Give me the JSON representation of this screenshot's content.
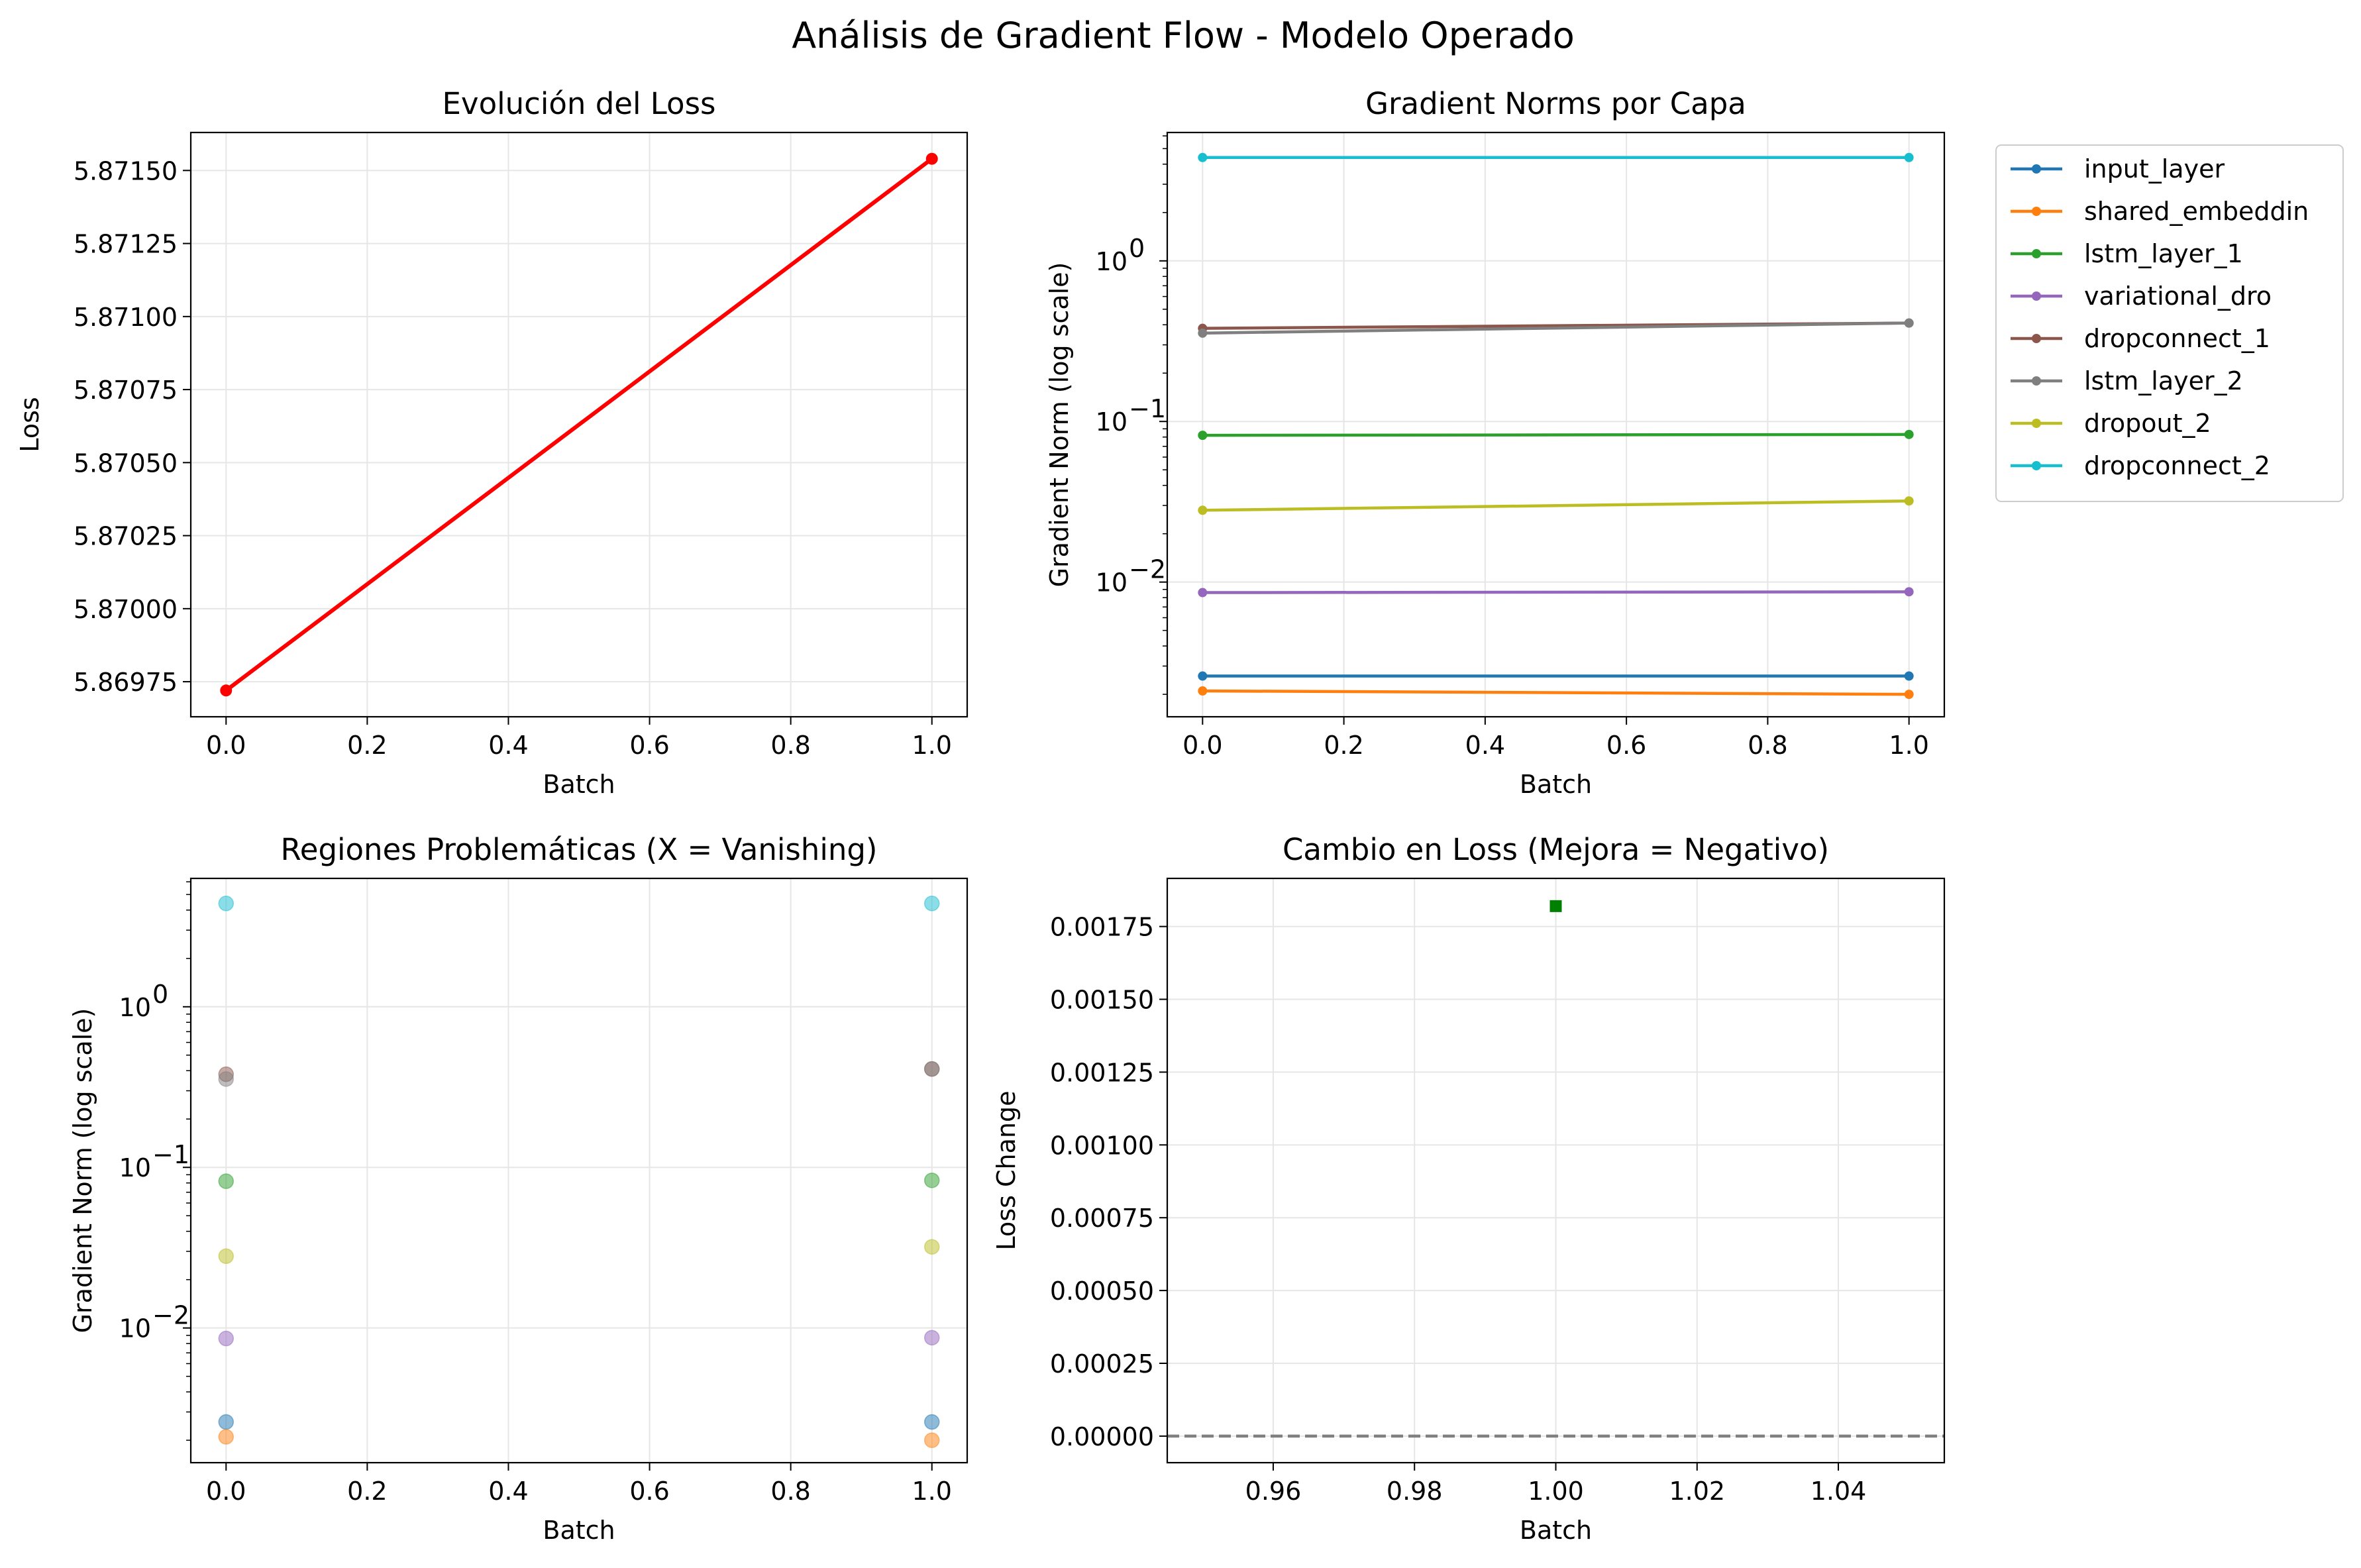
{
  "figure": {
    "suptitle": "Análisis de Gradient Flow - Modelo Operado"
  },
  "colors": {
    "input_layer": "#1f77b4",
    "shared_embeddin": "#ff7f0e",
    "lstm_layer_1": "#2ca02c",
    "variational_dro": "#9467bd",
    "dropconnect_1": "#8c564b",
    "lstm_layer_2": "#7f7f7f",
    "dropout_2": "#bcbd22",
    "dropconnect_2": "#17becf",
    "loss_line": "#ff0000",
    "loss_change_marker": "#008000",
    "zero_line": "#808080",
    "grid": "#e6e6e6"
  },
  "chart_data": [
    {
      "id": "loss",
      "type": "line",
      "title": "Evolución del Loss",
      "xlabel": "Batch",
      "ylabel": "Loss",
      "x": [
        0,
        1
      ],
      "series": [
        {
          "values": [
            5.86972,
            5.87154
          ],
          "color": "#ff0000",
          "marker": "circle"
        }
      ],
      "xlim": [
        -0.05,
        1.05
      ],
      "ylim": [
        5.86963,
        5.87163
      ],
      "xticks": [
        0.0,
        0.2,
        0.4,
        0.6,
        0.8,
        1.0
      ],
      "xtick_labels": [
        "0.0",
        "0.2",
        "0.4",
        "0.6",
        "0.8",
        "1.0"
      ],
      "yticks": [
        5.86975,
        5.87,
        5.87025,
        5.8705,
        5.87075,
        5.871,
        5.87125,
        5.8715
      ],
      "ytick_labels": [
        "5.86975",
        "5.87000",
        "5.87025",
        "5.87050",
        "5.87075",
        "5.87100",
        "5.87125",
        "5.87150"
      ],
      "grid": true
    },
    {
      "id": "grad_norms",
      "type": "line",
      "title": "Gradient Norms por Capa",
      "xlabel": "Batch",
      "ylabel": "Gradient Norm (log scale)",
      "yscale": "log",
      "x": [
        0,
        1
      ],
      "series": [
        {
          "name": "input_layer",
          "values": [
            0.0026,
            0.0026
          ]
        },
        {
          "name": "shared_embeddin",
          "values": [
            0.0021,
            0.002
          ]
        },
        {
          "name": "lstm_layer_1",
          "values": [
            0.082,
            0.083
          ]
        },
        {
          "name": "variational_dro",
          "values": [
            0.0086,
            0.0087
          ]
        },
        {
          "name": "dropconnect_1",
          "values": [
            0.38,
            0.41
          ]
        },
        {
          "name": "lstm_layer_2",
          "values": [
            0.355,
            0.41
          ]
        },
        {
          "name": "dropout_2",
          "values": [
            0.028,
            0.032
          ]
        },
        {
          "name": "dropconnect_2",
          "values": [
            4.4,
            4.4
          ]
        }
      ],
      "xlim": [
        -0.05,
        1.05
      ],
      "ylim": [
        0.00145,
        6.3
      ],
      "xticks": [
        0.0,
        0.2,
        0.4,
        0.6,
        0.8,
        1.0
      ],
      "xtick_labels": [
        "0.0",
        "0.2",
        "0.4",
        "0.6",
        "0.8",
        "1.0"
      ],
      "yticks": [
        0.01,
        0.1,
        1
      ],
      "ytick_labels": [
        [
          "10",
          "−2"
        ],
        [
          "10",
          "−1"
        ],
        [
          "10",
          "0"
        ]
      ],
      "legend": "outside right, upper",
      "grid": true
    },
    {
      "id": "problem_regions",
      "type": "scatter",
      "title": "Regiones Problemáticas (X = Vanishing)",
      "xlabel": "Batch",
      "ylabel": "Gradient Norm (log scale)",
      "yscale": "log",
      "x": [
        0,
        1
      ],
      "series": [
        {
          "name": "input_layer",
          "values": [
            0.0026,
            0.0026
          ]
        },
        {
          "name": "shared_embeddin",
          "values": [
            0.0021,
            0.002
          ]
        },
        {
          "name": "lstm_layer_1",
          "values": [
            0.082,
            0.083
          ]
        },
        {
          "name": "variational_dro",
          "values": [
            0.0086,
            0.0087
          ]
        },
        {
          "name": "dropconnect_1",
          "values": [
            0.38,
            0.41
          ]
        },
        {
          "name": "lstm_layer_2",
          "values": [
            0.355,
            0.41
          ]
        },
        {
          "name": "dropout_2",
          "values": [
            0.028,
            0.032
          ]
        },
        {
          "name": "dropconnect_2",
          "values": [
            4.4,
            4.4
          ]
        }
      ],
      "alpha": 0.5,
      "xlim": [
        -0.05,
        1.05
      ],
      "ylim": [
        0.00145,
        6.3
      ],
      "xticks": [
        0.0,
        0.2,
        0.4,
        0.6,
        0.8,
        1.0
      ],
      "xtick_labels": [
        "0.0",
        "0.2",
        "0.4",
        "0.6",
        "0.8",
        "1.0"
      ],
      "yticks": [
        0.01,
        0.1,
        1
      ],
      "ytick_labels": [
        [
          "10",
          "−2"
        ],
        [
          "10",
          "−1"
        ],
        [
          "10",
          "0"
        ]
      ],
      "grid": true
    },
    {
      "id": "loss_change",
      "type": "scatter",
      "title": "Cambio en Loss (Mejora = Negativo)",
      "xlabel": "Batch",
      "ylabel": "Loss Change",
      "x": [
        1.0
      ],
      "series": [
        {
          "values": [
            0.00182
          ],
          "color": "#008000",
          "marker": "square"
        }
      ],
      "hline": {
        "y": 0,
        "color": "#808080",
        "style": "dashed"
      },
      "xlim": [
        0.945,
        1.055
      ],
      "ylim": [
        -9.12e-05,
        0.0019152
      ],
      "xticks": [
        0.96,
        0.98,
        1.0,
        1.02,
        1.04
      ],
      "xtick_labels": [
        "0.96",
        "0.98",
        "1.00",
        "1.02",
        "1.04"
      ],
      "yticks": [
        0,
        0.00025,
        0.0005,
        0.00075,
        0.001,
        0.00125,
        0.0015,
        0.00175
      ],
      "ytick_labels": [
        "0.00000",
        "0.00025",
        "0.00050",
        "0.00075",
        "0.00100",
        "0.00125",
        "0.00150",
        "0.00175"
      ],
      "grid": true
    }
  ]
}
